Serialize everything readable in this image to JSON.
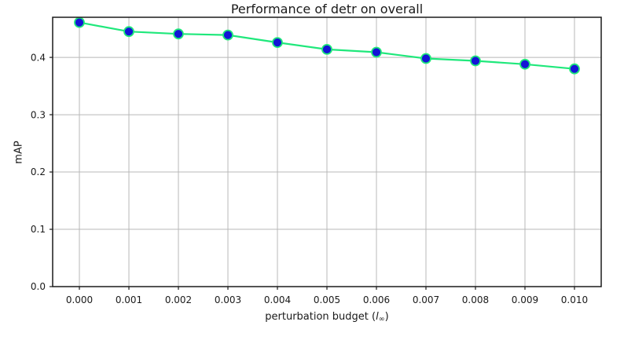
{
  "chart_data": {
    "type": "line",
    "title": "Performance of detr on overall",
    "xlabel": "perturbation budget (l∞)",
    "ylabel": "mAP",
    "series": [
      {
        "name": "detr",
        "x": [
          0.0,
          0.001,
          0.002,
          0.003,
          0.004,
          0.005,
          0.006,
          0.007,
          0.008,
          0.009,
          0.01
        ],
        "values": [
          0.461,
          0.445,
          0.441,
          0.439,
          0.426,
          0.414,
          0.409,
          0.398,
          0.394,
          0.388,
          0.38
        ]
      }
    ],
    "xticks": {
      "values": [
        0.0,
        0.001,
        0.002,
        0.003,
        0.004,
        0.005,
        0.006,
        0.007,
        0.008,
        0.009,
        0.01
      ],
      "labels": [
        "0.000",
        "0.001",
        "0.002",
        "0.003",
        "0.004",
        "0.005",
        "0.006",
        "0.007",
        "0.008",
        "0.009",
        "0.010"
      ]
    },
    "yticks": {
      "values": [
        0.0,
        0.1,
        0.2,
        0.3,
        0.4
      ],
      "labels": [
        "0.0",
        "0.1",
        "0.2",
        "0.3",
        "0.4"
      ]
    },
    "xlim": [
      -0.00054,
      0.01054
    ],
    "ylim": [
      0,
      0.47
    ],
    "grid": true,
    "legend": null,
    "colors": {
      "line": "#1fe87b",
      "marker_fill": "#1414d6",
      "marker_edge": "#1fe87b",
      "grid": "#b8b8b8",
      "spine": "#1a1a1a",
      "text": "#1a1a1a",
      "background": "#ffffff"
    }
  },
  "labels": {
    "xlabel_pre": "perturbation budget (",
    "xlabel_var": "l",
    "xlabel_sub": "∞",
    "xlabel_post": ")"
  }
}
